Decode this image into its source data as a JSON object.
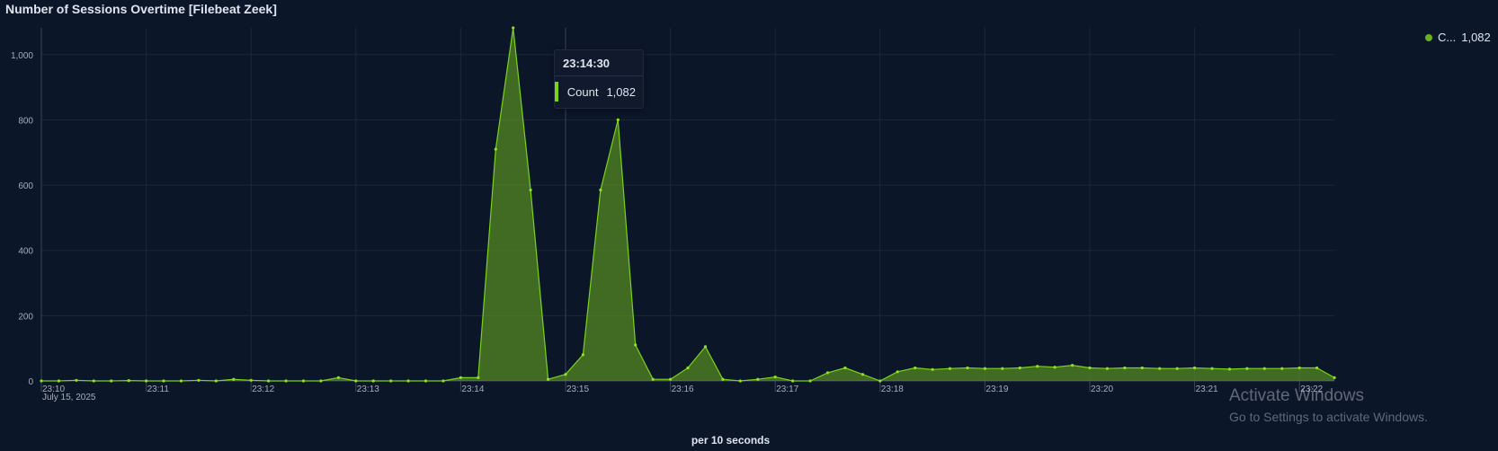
{
  "panel": {
    "title": "Number of Sessions Overtime [Filebeat Zeek]"
  },
  "legend": {
    "label": "C...",
    "value": "1,082",
    "color": "#6db01d"
  },
  "tooltip": {
    "time": "23:14:30",
    "label": "Count",
    "value": "1,082",
    "color": "#7ad31a"
  },
  "watermark": {
    "line1": "Activate Windows",
    "line2": "Go to Settings to activate Windows."
  },
  "chart_data": {
    "type": "area",
    "series": [
      {
        "name": "Count",
        "color": "#6db01d",
        "x": [
          "23:10:00",
          "23:10:10",
          "23:10:20",
          "23:10:30",
          "23:10:40",
          "23:10:50",
          "23:11:00",
          "23:11:10",
          "23:11:20",
          "23:11:30",
          "23:11:40",
          "23:11:50",
          "23:12:00",
          "23:12:10",
          "23:12:20",
          "23:12:30",
          "23:12:40",
          "23:12:50",
          "23:13:00",
          "23:13:10",
          "23:13:20",
          "23:13:30",
          "23:13:40",
          "23:13:50",
          "23:14:00",
          "23:14:10",
          "23:14:20",
          "23:14:30",
          "23:14:40",
          "23:14:50",
          "23:15:00",
          "23:15:10",
          "23:15:20",
          "23:15:30",
          "23:15:40",
          "23:15:50",
          "23:16:00",
          "23:16:10",
          "23:16:20",
          "23:16:30",
          "23:16:40",
          "23:16:50",
          "23:17:00",
          "23:17:10",
          "23:17:20",
          "23:17:30",
          "23:17:40",
          "23:17:50",
          "23:18:00",
          "23:18:10",
          "23:18:20",
          "23:18:30",
          "23:18:40",
          "23:18:50",
          "23:19:00",
          "23:19:10",
          "23:19:20",
          "23:19:30",
          "23:19:40",
          "23:19:50",
          "23:20:00",
          "23:20:10",
          "23:20:20",
          "23:20:30",
          "23:20:40",
          "23:20:50",
          "23:21:00",
          "23:21:10",
          "23:21:20",
          "23:21:30",
          "23:21:40",
          "23:21:50",
          "23:22:00",
          "23:22:10",
          "23:22:20"
        ],
        "values": [
          0,
          0,
          2,
          0,
          0,
          1,
          0,
          0,
          0,
          2,
          0,
          5,
          2,
          0,
          0,
          0,
          0,
          10,
          0,
          0,
          0,
          0,
          0,
          0,
          10,
          10,
          710,
          1082,
          585,
          5,
          20,
          80,
          585,
          800,
          110,
          5,
          5,
          40,
          105,
          5,
          0,
          5,
          12,
          0,
          0,
          25,
          40,
          20,
          0,
          28,
          40,
          35,
          38,
          40,
          38,
          38,
          40,
          45,
          42,
          48,
          40,
          38,
          40,
          40,
          38,
          38,
          40,
          38,
          36,
          38,
          38,
          38,
          40,
          40,
          10
        ]
      }
    ],
    "x_ticks": [
      {
        "t": "23:10",
        "sub": "July 15, 2025"
      },
      {
        "t": "23:11"
      },
      {
        "t": "23:12"
      },
      {
        "t": "23:13"
      },
      {
        "t": "23:14"
      },
      {
        "t": "23:15"
      },
      {
        "t": "23:16"
      },
      {
        "t": "23:17"
      },
      {
        "t": "23:18"
      },
      {
        "t": "23:19"
      },
      {
        "t": "23:20"
      },
      {
        "t": "23:21"
      },
      {
        "t": "23:22"
      }
    ],
    "y_ticks": [
      0,
      200,
      400,
      600,
      800,
      1000
    ],
    "y_tick_labels": [
      "0",
      "200",
      "400",
      "600",
      "800",
      "1,000"
    ],
    "ylim": [
      0,
      1082
    ],
    "xlabel": "per 10 seconds",
    "ylabel": "",
    "crosshair_x": "23:15",
    "grid": true,
    "legend_position": "top-right"
  }
}
